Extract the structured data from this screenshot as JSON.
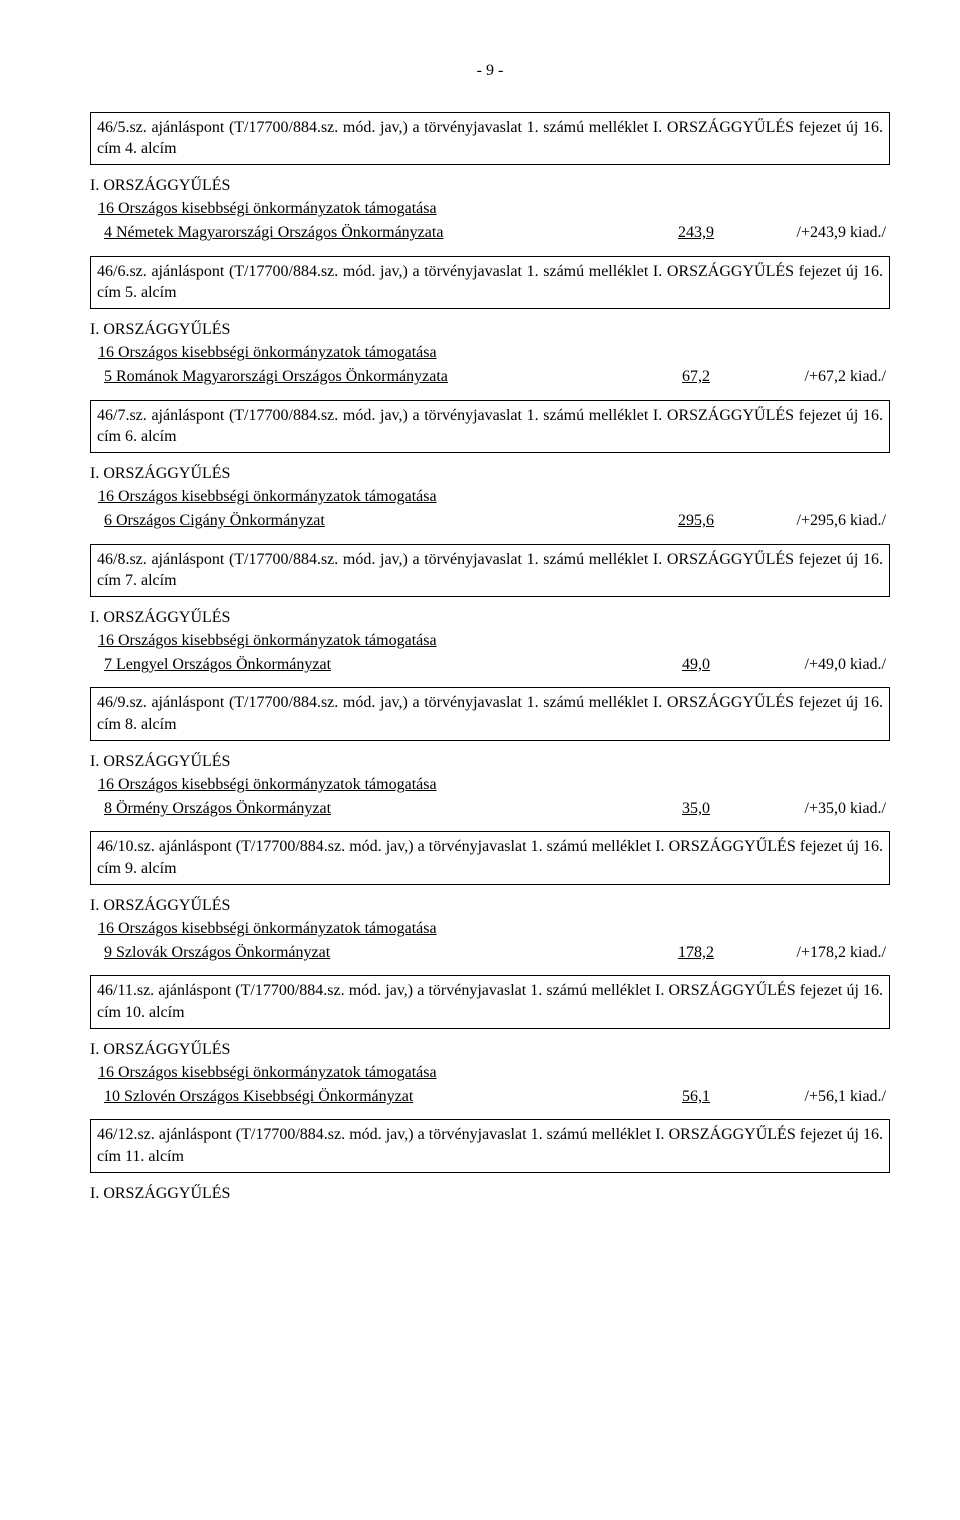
{
  "page_number": "- 9 -",
  "common": {
    "ref_prefix": "ajánláspont (T/17700/884.sz. mód. jav,) a törvényjavaslat 1. számú melléklet I. ORSZÁGGYŰLÉS fejezet új 16. cím",
    "section_header": "I. ORSZÁGGYŰLÉS",
    "support_line": "16  Országos kisebbségi önkormányzatok támogatása"
  },
  "items": [
    {
      "ref_num": "46/5.sz.",
      "cim": "4. alcím",
      "detail": "   4  Németek Magyarországi Országos Önkormányzata",
      "value": "243,9",
      "change": "/+243,9 kiad./"
    },
    {
      "ref_num": "46/6.sz.",
      "cim": "5. alcím",
      "detail": "   5  Románok Magyarországi Országos Önkormányzata",
      "value": "67,2",
      "change": "/+67,2 kiad./"
    },
    {
      "ref_num": "46/7.sz.",
      "cim": "6. alcím",
      "detail": "   6  Országos Cigány Önkormányzat",
      "value": "295,6",
      "change": "/+295,6 kiad./"
    },
    {
      "ref_num": "46/8.sz.",
      "cim": "7. alcím",
      "detail": "   7  Lengyel Országos Önkormányzat",
      "value": "49,0",
      "change": "/+49,0 kiad./"
    },
    {
      "ref_num": "46/9.sz.",
      "cim": "8. alcím",
      "detail": "   8  Örmény Országos Önkormányzat",
      "value": "35,0",
      "change": "/+35,0 kiad./"
    },
    {
      "ref_num": "46/10.sz.",
      "cim": "9. alcím",
      "detail": "   9  Szlovák Országos Önkormányzat",
      "value": "178,2",
      "change": "/+178,2 kiad./"
    },
    {
      "ref_num": "46/11.sz.",
      "cim": "10. alcím",
      "detail": "   10  Szlovén Országos Kisebbségi Önkormányzat",
      "value": "56,1",
      "change": "/+56,1 kiad./"
    }
  ],
  "last_box": {
    "ref_num": "46/12.sz.",
    "cim": "11. alcím"
  }
}
